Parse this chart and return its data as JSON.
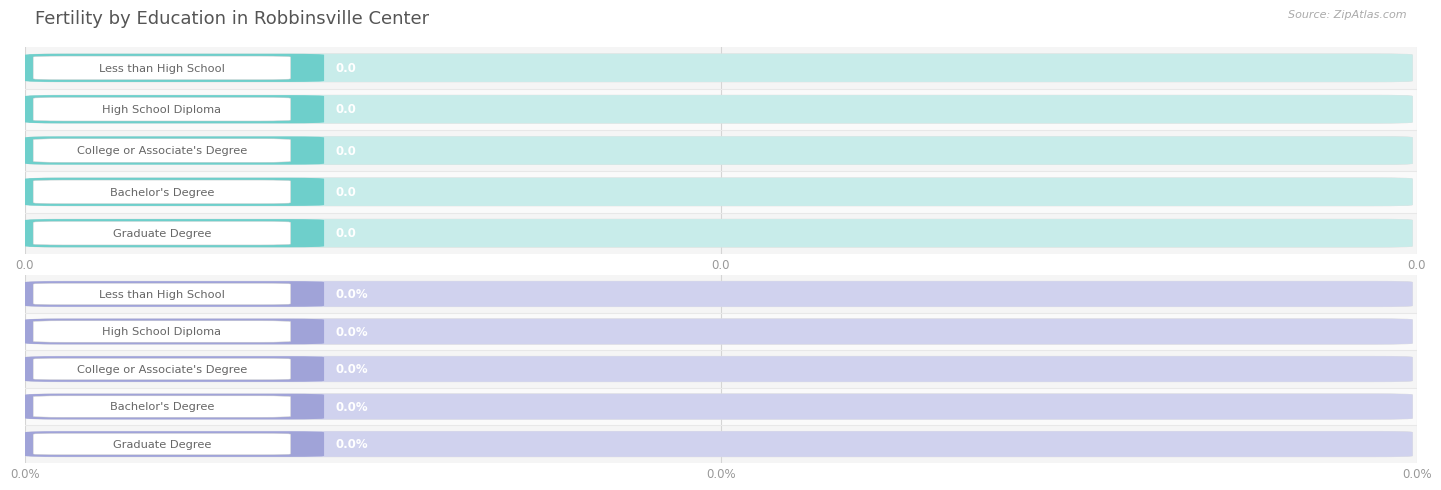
{
  "title": "Fertility by Education in Robbinsville Center",
  "source": "Source: ZipAtlas.com",
  "categories": [
    "Less than High School",
    "High School Diploma",
    "College or Associate's Degree",
    "Bachelor's Degree",
    "Graduate Degree"
  ],
  "top_values": [
    0.0,
    0.0,
    0.0,
    0.0,
    0.0
  ],
  "bottom_values": [
    0.0,
    0.0,
    0.0,
    0.0,
    0.0
  ],
  "top_bar_color": "#6ECFCB",
  "top_bar_bg": "#C8ECEA",
  "top_outer_bg": "#E8F5F4",
  "bottom_bar_color": "#A0A3D8",
  "bottom_bar_bg": "#D0D2EE",
  "bottom_outer_bg": "#E8E9F5",
  "label_text_color": "#666666",
  "title_color": "#555555",
  "source_color": "#AAAAAA",
  "top_tick_labels": [
    "0.0",
    "0.0",
    "0.0"
  ],
  "bottom_tick_labels": [
    "0.0%",
    "0.0%",
    "0.0%"
  ],
  "bg_color": "#FFFFFF",
  "row_sep_color": "#E0E0E0",
  "value_text_color": "#EEEEEE"
}
